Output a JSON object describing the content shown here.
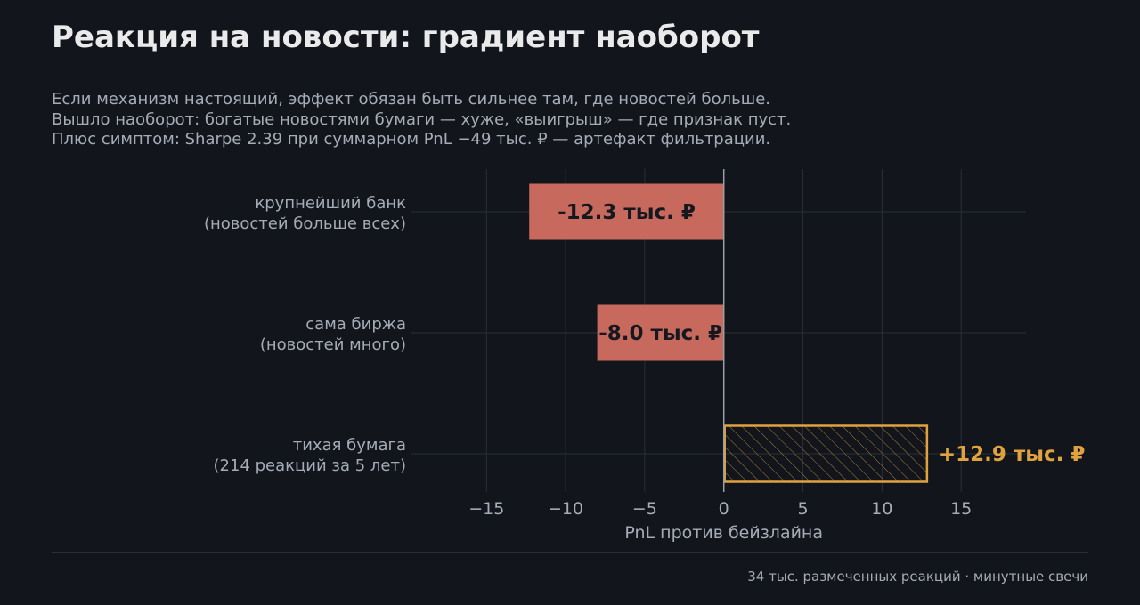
{
  "title": "Реакция на новости: градиент наоборот",
  "subtitle_lines": [
    "Если механизм настоящий, эффект обязан быть сильнее там, где новостей больше.",
    "Вышло наоборот: богатые новостями бумаги — хуже, «выигрыш» — где признак пуст.",
    "Плюс симптом: Sharpe 2.39 при суммарном PnL −49 тыс. ₽ — артефакт фильтрации."
  ],
  "footer_note": "34 тыс. размеченных реакций · минутные свечи",
  "chart_data": {
    "type": "bar",
    "orientation": "horizontal",
    "categories": [
      [
        "крупнейший банк",
        "(новостей больше всех)"
      ],
      [
        "сама биржа",
        "(новостей много)"
      ],
      [
        "тихая бумага",
        "(214 реакций за 5 лет)"
      ]
    ],
    "values": [
      -12.3,
      -8.0,
      12.9
    ],
    "data_labels": [
      "-12.3 тыс. ₽",
      "-8.0 тыс. ₽",
      "+12.9 тыс. ₽"
    ],
    "bar_styles": [
      "solid",
      "solid",
      "hatched-outline"
    ],
    "xlabel": "PnL против бейзлайна",
    "xticks": [
      -15,
      -10,
      -5,
      0,
      5,
      10,
      15
    ],
    "xtick_labels": [
      "−15",
      "−10",
      "−5",
      "0",
      "5",
      "10",
      "15"
    ],
    "xlim": [
      -19.8,
      19.1
    ],
    "grid": true,
    "colors": {
      "negative": "#c8695e",
      "positive": "#e0a23e",
      "negative_label": "#15181f",
      "grid": "#2a2e36",
      "zero_line": "#9aa0a8",
      "tick_text": "#a7acb4"
    }
  }
}
